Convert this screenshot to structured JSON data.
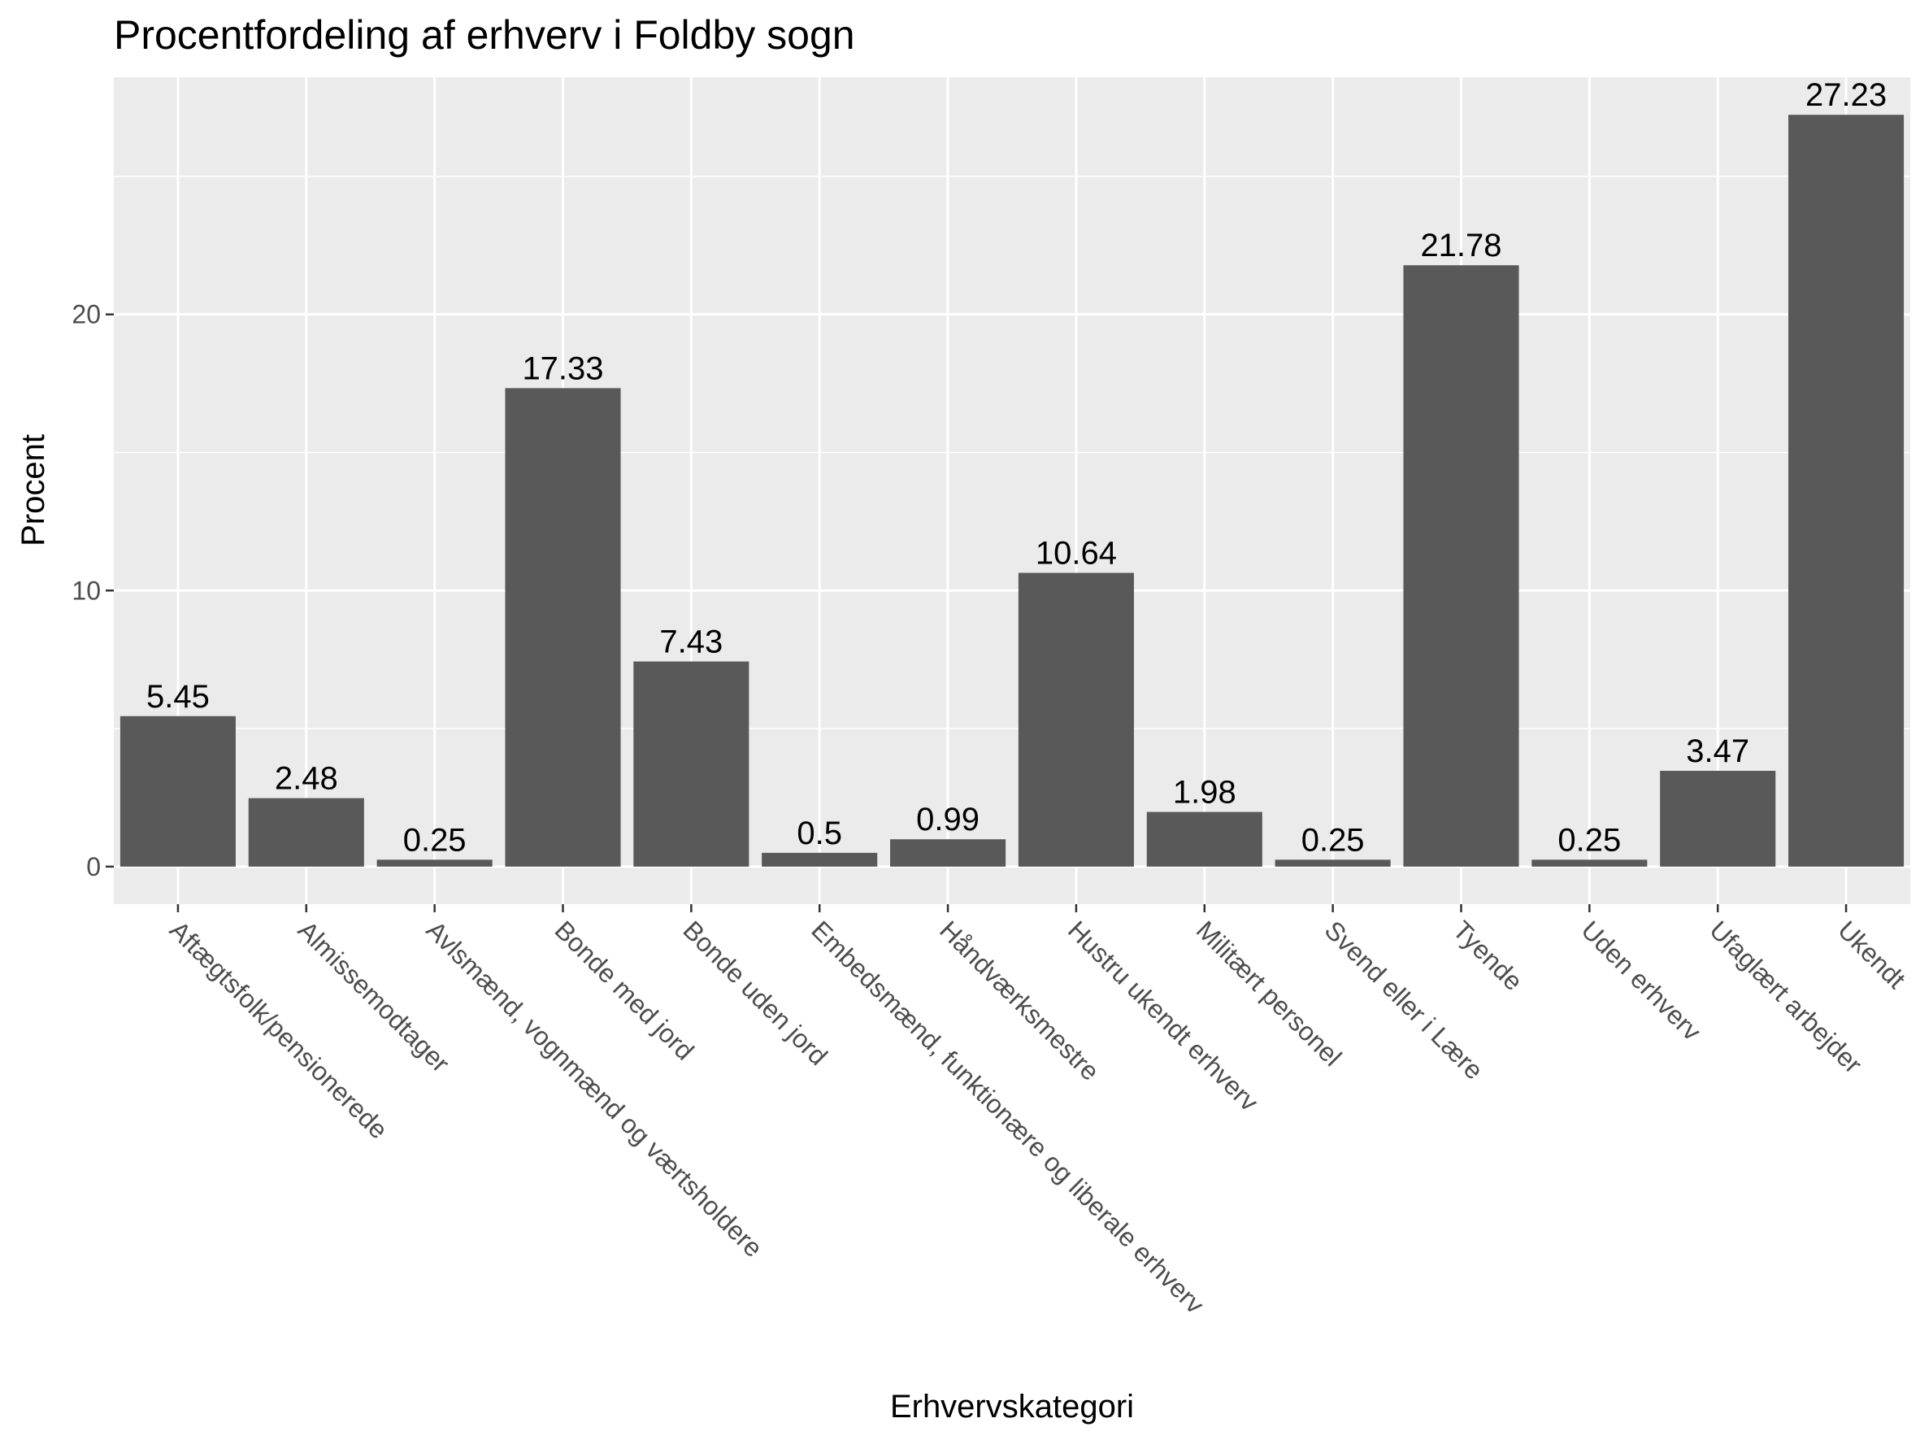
{
  "chart_data": {
    "type": "bar",
    "title": "Procentfordeling af erhverv i Foldby sogn",
    "xlabel": "Erhvervskategori",
    "ylabel": "Procent",
    "categories": [
      "Aftægtsfolk/pensionerede",
      "Almissemodtager",
      "Avlsmænd, vognmænd og værtsholdere",
      "Bonde med jord",
      "Bonde uden jord",
      "Embedsmænd, funktionære og liberale erhverv",
      "Håndværksmestre",
      "Hustru ukendt erhverv",
      "Militært personel",
      "Svend eller i Lære",
      "Tyende",
      "Uden erhverv",
      "Ufaglært arbejder",
      "Ukendt"
    ],
    "values": [
      5.45,
      2.48,
      0.25,
      17.33,
      7.43,
      0.5,
      0.99,
      10.64,
      1.98,
      0.25,
      21.78,
      0.25,
      3.47,
      27.23
    ],
    "value_labels": [
      "5.45",
      "2.48",
      "0.25",
      "17.33",
      "7.43",
      "0.5",
      "0.99",
      "10.64",
      "1.98",
      "0.25",
      "21.78",
      "0.25",
      "3.47",
      "27.23"
    ],
    "y_ticks": [
      0,
      10,
      20
    ],
    "y_tick_labels": [
      "0",
      "10",
      "20"
    ],
    "ylim": [
      -1.36,
      28.59
    ],
    "grid": true,
    "colors": {
      "bar": "#595959",
      "panel": "#ebebeb",
      "grid": "#ffffff",
      "tick_text": "#4d4d4d",
      "tick_mark": "#333333"
    }
  }
}
